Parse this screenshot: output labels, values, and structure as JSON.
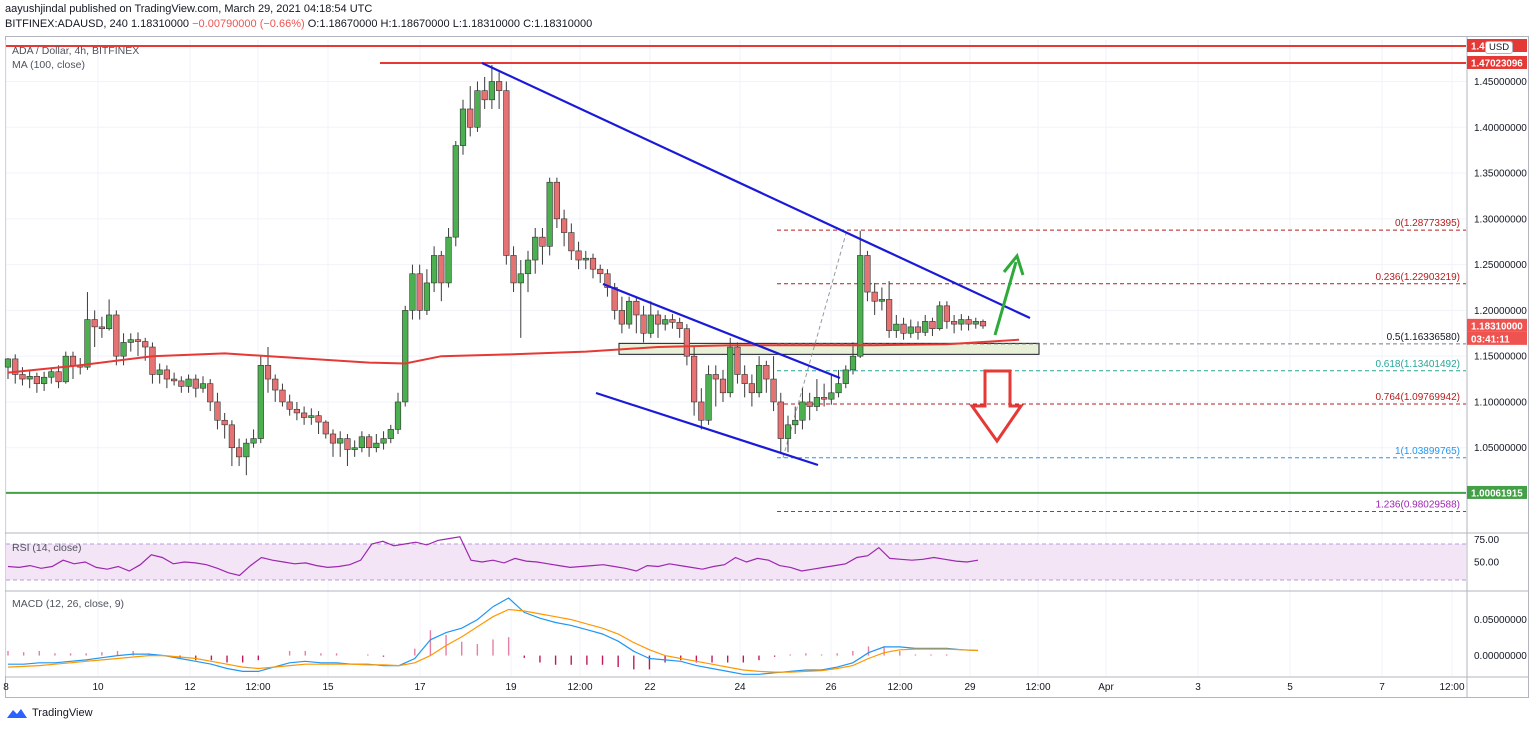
{
  "header": {
    "publisher": "aayushjindal published on TradingView.com, March 29, 2021 04:18:54 UTC",
    "symbol": "BITFINEX:ADAUSD, 240",
    "last": "1.18310000",
    "change": "−0.00790000 (−0.66%)",
    "open": "O:1.18670000",
    "high": "H:1.18670000",
    "low": "L:1.18310000",
    "close": "C:1.18310000"
  },
  "legend": {
    "pair": "ADA / Dollar, 4h, BITFINEX",
    "ma": "MA (100, close)",
    "rsi": "RSI (14, close)",
    "macd": "MACD (12, 26, close, 9)"
  },
  "currency_badge": "USD",
  "footer": {
    "brand": "TradingView"
  },
  "colors": {
    "up": "#26a69a",
    "up_fill": "#4caf50",
    "down": "#ef5350",
    "ma": "#e53935",
    "trend": "#1a1ad8",
    "support": "#43a047",
    "resistance": "#e53935",
    "rsi": "#9c27b0",
    "macd": "#2196f3",
    "signal": "#ff9800",
    "fib_red": "#b71c1c",
    "fib_teal": "#26a69a"
  },
  "chart_data": [
    {
      "type": "candlestick",
      "title": "ADA / Dollar, 4h, BITFINEX",
      "ylim": [
        0.9591,
        1.4959
      ],
      "yticks": [
        "1.45000000",
        "1.40000000",
        "1.35000000",
        "1.30000000",
        "1.25000000",
        "1.20000000",
        "1.15000000",
        "1.10000000",
        "1.05000000"
      ],
      "xticks": [
        "8",
        "10",
        "12",
        "12:00",
        "15",
        "17",
        "19",
        "12:00",
        "22",
        "24",
        "26",
        "12:00",
        "29",
        "12:00",
        "Apr",
        "3",
        "5",
        "7",
        "12:00"
      ],
      "candles": [
        [
          1.138,
          1.147,
          1.125,
          1.148
        ],
        [
          1.147,
          1.13,
          1.12,
          1.152
        ],
        [
          1.13,
          1.125,
          1.118,
          1.138
        ],
        [
          1.125,
          1.128,
          1.115,
          1.134
        ],
        [
          1.128,
          1.12,
          1.11,
          1.132
        ],
        [
          1.12,
          1.127,
          1.112,
          1.133
        ],
        [
          1.127,
          1.133,
          1.12,
          1.137
        ],
        [
          1.133,
          1.122,
          1.115,
          1.14
        ],
        [
          1.122,
          1.15,
          1.12,
          1.155
        ],
        [
          1.15,
          1.14,
          1.125,
          1.155
        ],
        [
          1.14,
          1.138,
          1.13,
          1.148
        ],
        [
          1.138,
          1.19,
          1.135,
          1.22
        ],
        [
          1.19,
          1.182,
          1.16,
          1.2
        ],
        [
          1.182,
          1.18,
          1.17,
          1.193
        ],
        [
          1.18,
          1.195,
          1.178,
          1.212
        ],
        [
          1.195,
          1.15,
          1.14,
          1.2
        ],
        [
          1.15,
          1.165,
          1.14,
          1.175
        ],
        [
          1.165,
          1.168,
          1.155,
          1.175
        ],
        [
          1.168,
          1.166,
          1.15,
          1.176
        ],
        [
          1.166,
          1.16,
          1.145,
          1.17
        ],
        [
          1.16,
          1.13,
          1.12,
          1.165
        ],
        [
          1.13,
          1.135,
          1.12,
          1.142
        ],
        [
          1.135,
          1.125,
          1.115,
          1.14
        ],
        [
          1.125,
          1.123,
          1.118,
          1.132
        ],
        [
          1.123,
          1.117,
          1.11,
          1.128
        ],
        [
          1.117,
          1.125,
          1.11,
          1.13
        ],
        [
          1.125,
          1.115,
          1.105,
          1.13
        ],
        [
          1.115,
          1.12,
          1.11,
          1.128
        ],
        [
          1.12,
          1.1,
          1.09,
          1.125
        ],
        [
          1.1,
          1.08,
          1.07,
          1.11
        ],
        [
          1.08,
          1.075,
          1.06,
          1.088
        ],
        [
          1.075,
          1.05,
          1.03,
          1.08
        ],
        [
          1.05,
          1.04,
          1.03,
          1.06
        ],
        [
          1.04,
          1.055,
          1.02,
          1.06
        ],
        [
          1.055,
          1.06,
          1.05,
          1.07
        ],
        [
          1.06,
          1.14,
          1.055,
          1.15
        ],
        [
          1.14,
          1.125,
          1.11,
          1.16
        ],
        [
          1.125,
          1.113,
          1.1,
          1.13
        ],
        [
          1.113,
          1.1,
          1.095,
          1.12
        ],
        [
          1.1,
          1.092,
          1.085,
          1.108
        ],
        [
          1.092,
          1.088,
          1.08,
          1.1
        ],
        [
          1.088,
          1.083,
          1.075,
          1.095
        ],
        [
          1.083,
          1.085,
          1.075,
          1.093
        ],
        [
          1.085,
          1.078,
          1.065,
          1.09
        ],
        [
          1.078,
          1.065,
          1.06,
          1.08
        ],
        [
          1.065,
          1.055,
          1.04,
          1.07
        ],
        [
          1.055,
          1.06,
          1.04,
          1.068
        ],
        [
          1.06,
          1.048,
          1.03,
          1.065
        ],
        [
          1.048,
          1.05,
          1.04,
          1.058
        ],
        [
          1.05,
          1.062,
          1.045,
          1.068
        ],
        [
          1.062,
          1.05,
          1.04,
          1.065
        ],
        [
          1.05,
          1.055,
          1.045,
          1.065
        ],
        [
          1.055,
          1.06,
          1.048,
          1.068
        ],
        [
          1.06,
          1.07,
          1.055,
          1.075
        ],
        [
          1.07,
          1.1,
          1.065,
          1.11
        ],
        [
          1.1,
          1.2,
          1.095,
          1.205
        ],
        [
          1.2,
          1.24,
          1.19,
          1.25
        ],
        [
          1.24,
          1.2,
          1.19,
          1.25
        ],
        [
          1.2,
          1.23,
          1.195,
          1.245
        ],
        [
          1.23,
          1.26,
          1.22,
          1.27
        ],
        [
          1.26,
          1.23,
          1.21,
          1.265
        ],
        [
          1.23,
          1.28,
          1.225,
          1.29
        ],
        [
          1.28,
          1.38,
          1.27,
          1.385
        ],
        [
          1.38,
          1.42,
          1.37,
          1.43
        ],
        [
          1.42,
          1.4,
          1.39,
          1.445
        ],
        [
          1.4,
          1.44,
          1.395,
          1.45
        ],
        [
          1.44,
          1.43,
          1.42,
          1.455
        ],
        [
          1.43,
          1.45,
          1.42,
          1.468
        ],
        [
          1.45,
          1.44,
          1.42,
          1.46
        ],
        [
          1.44,
          1.26,
          1.25,
          1.45
        ],
        [
          1.26,
          1.23,
          1.22,
          1.27
        ],
        [
          1.23,
          1.24,
          1.17,
          1.255
        ],
        [
          1.24,
          1.255,
          1.22,
          1.265
        ],
        [
          1.255,
          1.28,
          1.24,
          1.29
        ],
        [
          1.28,
          1.27,
          1.25,
          1.29
        ],
        [
          1.27,
          1.34,
          1.26,
          1.345
        ],
        [
          1.34,
          1.3,
          1.29,
          1.345
        ],
        [
          1.3,
          1.285,
          1.27,
          1.31
        ],
        [
          1.285,
          1.265,
          1.255,
          1.295
        ],
        [
          1.265,
          1.255,
          1.245,
          1.275
        ],
        [
          1.255,
          1.257,
          1.245,
          1.265
        ],
        [
          1.257,
          1.245,
          1.235,
          1.262
        ],
        [
          1.245,
          1.24,
          1.23,
          1.25
        ],
        [
          1.24,
          1.225,
          1.215,
          1.245
        ],
        [
          1.225,
          1.2,
          1.19,
          1.23
        ],
        [
          1.2,
          1.185,
          1.175,
          1.215
        ],
        [
          1.185,
          1.21,
          1.18,
          1.215
        ],
        [
          1.21,
          1.195,
          1.175,
          1.215
        ],
        [
          1.195,
          1.175,
          1.165,
          1.205
        ],
        [
          1.175,
          1.195,
          1.17,
          1.21
        ],
        [
          1.195,
          1.185,
          1.17,
          1.2
        ],
        [
          1.185,
          1.19,
          1.178,
          1.195
        ],
        [
          1.19,
          1.187,
          1.18,
          1.196
        ],
        [
          1.187,
          1.18,
          1.17,
          1.192
        ],
        [
          1.18,
          1.15,
          1.14,
          1.185
        ],
        [
          1.15,
          1.1,
          1.085,
          1.16
        ],
        [
          1.1,
          1.08,
          1.07,
          1.115
        ],
        [
          1.08,
          1.13,
          1.075,
          1.14
        ],
        [
          1.13,
          1.125,
          1.095,
          1.14
        ],
        [
          1.125,
          1.11,
          1.1,
          1.135
        ],
        [
          1.11,
          1.16,
          1.105,
          1.17
        ],
        [
          1.16,
          1.13,
          1.12,
          1.165
        ],
        [
          1.13,
          1.12,
          1.105,
          1.14
        ],
        [
          1.12,
          1.11,
          1.095,
          1.13
        ],
        [
          1.11,
          1.14,
          1.105,
          1.15
        ],
        [
          1.14,
          1.125,
          1.11,
          1.145
        ],
        [
          1.125,
          1.1,
          1.09,
          1.15
        ],
        [
          1.1,
          1.06,
          1.045,
          1.11
        ],
        [
          1.06,
          1.075,
          1.045,
          1.085
        ],
        [
          1.075,
          1.08,
          1.065,
          1.095
        ],
        [
          1.08,
          1.1,
          1.07,
          1.115
        ],
        [
          1.1,
          1.095,
          1.08,
          1.11
        ],
        [
          1.095,
          1.105,
          1.09,
          1.125
        ],
        [
          1.105,
          1.103,
          1.095,
          1.12
        ],
        [
          1.103,
          1.11,
          1.097,
          1.13
        ],
        [
          1.11,
          1.12,
          1.105,
          1.135
        ],
        [
          1.12,
          1.135,
          1.115,
          1.14
        ],
        [
          1.135,
          1.15,
          1.13,
          1.165
        ],
        [
          1.15,
          1.26,
          1.148,
          1.287
        ],
        [
          1.26,
          1.22,
          1.21,
          1.265
        ],
        [
          1.22,
          1.21,
          1.195,
          1.23
        ],
        [
          1.21,
          1.212,
          1.2,
          1.225
        ],
        [
          1.212,
          1.178,
          1.17,
          1.232
        ],
        [
          1.178,
          1.185,
          1.17,
          1.195
        ],
        [
          1.185,
          1.175,
          1.168,
          1.192
        ],
        [
          1.175,
          1.182,
          1.17,
          1.19
        ],
        [
          1.182,
          1.176,
          1.168,
          1.188
        ],
        [
          1.176,
          1.188,
          1.172,
          1.195
        ],
        [
          1.188,
          1.18,
          1.172,
          1.192
        ],
        [
          1.18,
          1.205,
          1.178,
          1.21
        ],
        [
          1.205,
          1.188,
          1.18,
          1.21
        ],
        [
          1.188,
          1.185,
          1.175,
          1.195
        ],
        [
          1.185,
          1.19,
          1.178,
          1.196
        ],
        [
          1.19,
          1.185,
          1.178,
          1.194
        ],
        [
          1.185,
          1.188,
          1.18,
          1.192
        ],
        [
          1.188,
          1.183,
          1.18,
          1.19
        ]
      ],
      "ma100": [
        [
          0,
          1.132
        ],
        [
          10,
          1.14
        ],
        [
          20,
          1.15
        ],
        [
          30,
          1.153
        ],
        [
          40,
          1.148
        ],
        [
          50,
          1.143
        ],
        [
          55,
          1.142
        ],
        [
          60,
          1.15
        ],
        [
          70,
          1.152
        ],
        [
          80,
          1.155
        ],
        [
          90,
          1.16
        ],
        [
          100,
          1.162
        ],
        [
          110,
          1.162
        ],
        [
          120,
          1.162
        ],
        [
          130,
          1.163
        ],
        [
          140,
          1.168
        ]
      ],
      "price_scale_labels": [
        {
          "value": 1.4982,
          "label": "1.4… 12",
          "color": "#e53935"
        },
        {
          "value": 1.47023096,
          "label": "1.47023096",
          "color": "#e53935"
        },
        {
          "value": 1.1831,
          "label": "1.18310000",
          "color": "#ef5350"
        },
        {
          "value": 1.1831,
          "label": "03:41:11",
          "color": "#ef5350",
          "sub": true
        },
        {
          "value": 1.00061915,
          "label": "1.00061915",
          "color": "#43a047"
        }
      ],
      "fibonacci": [
        {
          "level": "0",
          "value": 1.28773395,
          "label": "0(1.28773395)",
          "color": "#b71c1c"
        },
        {
          "level": "0.236",
          "value": 1.22903219,
          "label": "0.236(1.22903219)",
          "color": "#b71c1c"
        },
        {
          "level": "0.5",
          "value": 1.1633658,
          "label": "0.5(1.16336580)",
          "color": "#131722"
        },
        {
          "level": "0.618",
          "value": 1.13401492,
          "label": "0.618(1.13401492)",
          "color": "#26a69a"
        },
        {
          "level": "0.764",
          "value": 1.09769942,
          "label": "0.764(1.09769942)",
          "color": "#b71c1c"
        },
        {
          "level": "1",
          "value": 1.03899765,
          "label": "1(1.03899765)",
          "color": "#2196f3"
        },
        {
          "level": "1.236",
          "value": 0.98029588,
          "label": "1.236(0.98029588)",
          "color": "#9c27b0"
        }
      ],
      "resistance": [
        1.4982,
        1.47023096
      ],
      "support": 1.00061915,
      "support_zone": [
        1.152,
        1.164
      ]
    },
    {
      "type": "line",
      "title": "RSI (14, close)",
      "ylim": [
        20,
        80
      ],
      "band": [
        30,
        70
      ],
      "yticks": [
        "75.00",
        "50.00"
      ],
      "values": [
        45,
        44,
        46,
        43,
        45,
        52,
        48,
        50,
        44,
        42,
        45,
        40,
        47,
        58,
        55,
        48,
        50,
        49,
        47,
        43,
        38,
        35,
        46,
        55,
        52,
        50,
        48,
        49,
        46,
        44,
        45,
        47,
        52,
        70,
        73,
        68,
        70,
        72,
        69,
        74,
        76,
        78,
        52,
        50,
        52,
        49,
        54,
        51,
        50,
        48,
        46,
        44,
        45,
        46,
        47,
        45,
        43,
        40,
        46,
        45,
        48,
        46,
        44,
        42,
        45,
        47,
        55,
        50,
        54,
        52,
        46,
        44,
        40,
        42,
        44,
        46,
        48,
        55,
        57,
        66,
        54,
        53,
        52,
        53,
        55,
        53,
        51,
        50,
        52
      ]
    },
    {
      "type": "line",
      "title": "MACD (12, 26, close, 9)",
      "ylim": [
        -0.027,
        0.087
      ],
      "yticks": [
        "0.05000000",
        "0.00000000"
      ],
      "macd": [
        -0.012,
        -0.012,
        -0.01,
        -0.01,
        -0.008,
        -0.006,
        -0.003,
        0.0,
        0.002,
        0.002,
        0.0,
        -0.004,
        -0.008,
        -0.012,
        -0.018,
        -0.022,
        -0.022,
        -0.016,
        -0.01,
        -0.008,
        -0.01,
        -0.01,
        -0.012,
        -0.012,
        -0.014,
        -0.014,
        -0.004,
        0.022,
        0.032,
        0.038,
        0.05,
        0.068,
        0.08,
        0.06,
        0.052,
        0.046,
        0.042,
        0.036,
        0.03,
        0.02,
        0.006,
        -0.004,
        -0.006,
        -0.008,
        -0.014,
        -0.018,
        -0.022,
        -0.026,
        -0.026,
        -0.024,
        -0.022,
        -0.02,
        -0.02,
        -0.016,
        -0.01,
        0.004,
        0.012,
        0.012,
        0.01,
        0.01,
        0.01,
        0.008,
        0.007
      ],
      "signal": [
        -0.016,
        -0.015,
        -0.014,
        -0.012,
        -0.01,
        -0.008,
        -0.006,
        -0.004,
        -0.002,
        0.0,
        0.0,
        -0.002,
        -0.004,
        -0.008,
        -0.012,
        -0.016,
        -0.018,
        -0.016,
        -0.014,
        -0.012,
        -0.012,
        -0.012,
        -0.012,
        -0.013,
        -0.013,
        -0.014,
        -0.01,
        0.0,
        0.014,
        0.026,
        0.04,
        0.054,
        0.064,
        0.062,
        0.058,
        0.054,
        0.05,
        0.044,
        0.038,
        0.03,
        0.018,
        0.008,
        0.0,
        -0.004,
        -0.008,
        -0.012,
        -0.016,
        -0.02,
        -0.022,
        -0.023,
        -0.023,
        -0.022,
        -0.021,
        -0.018,
        -0.014,
        -0.004,
        0.004,
        0.008,
        0.009,
        0.009,
        0.009,
        0.008,
        0.007
      ]
    }
  ]
}
